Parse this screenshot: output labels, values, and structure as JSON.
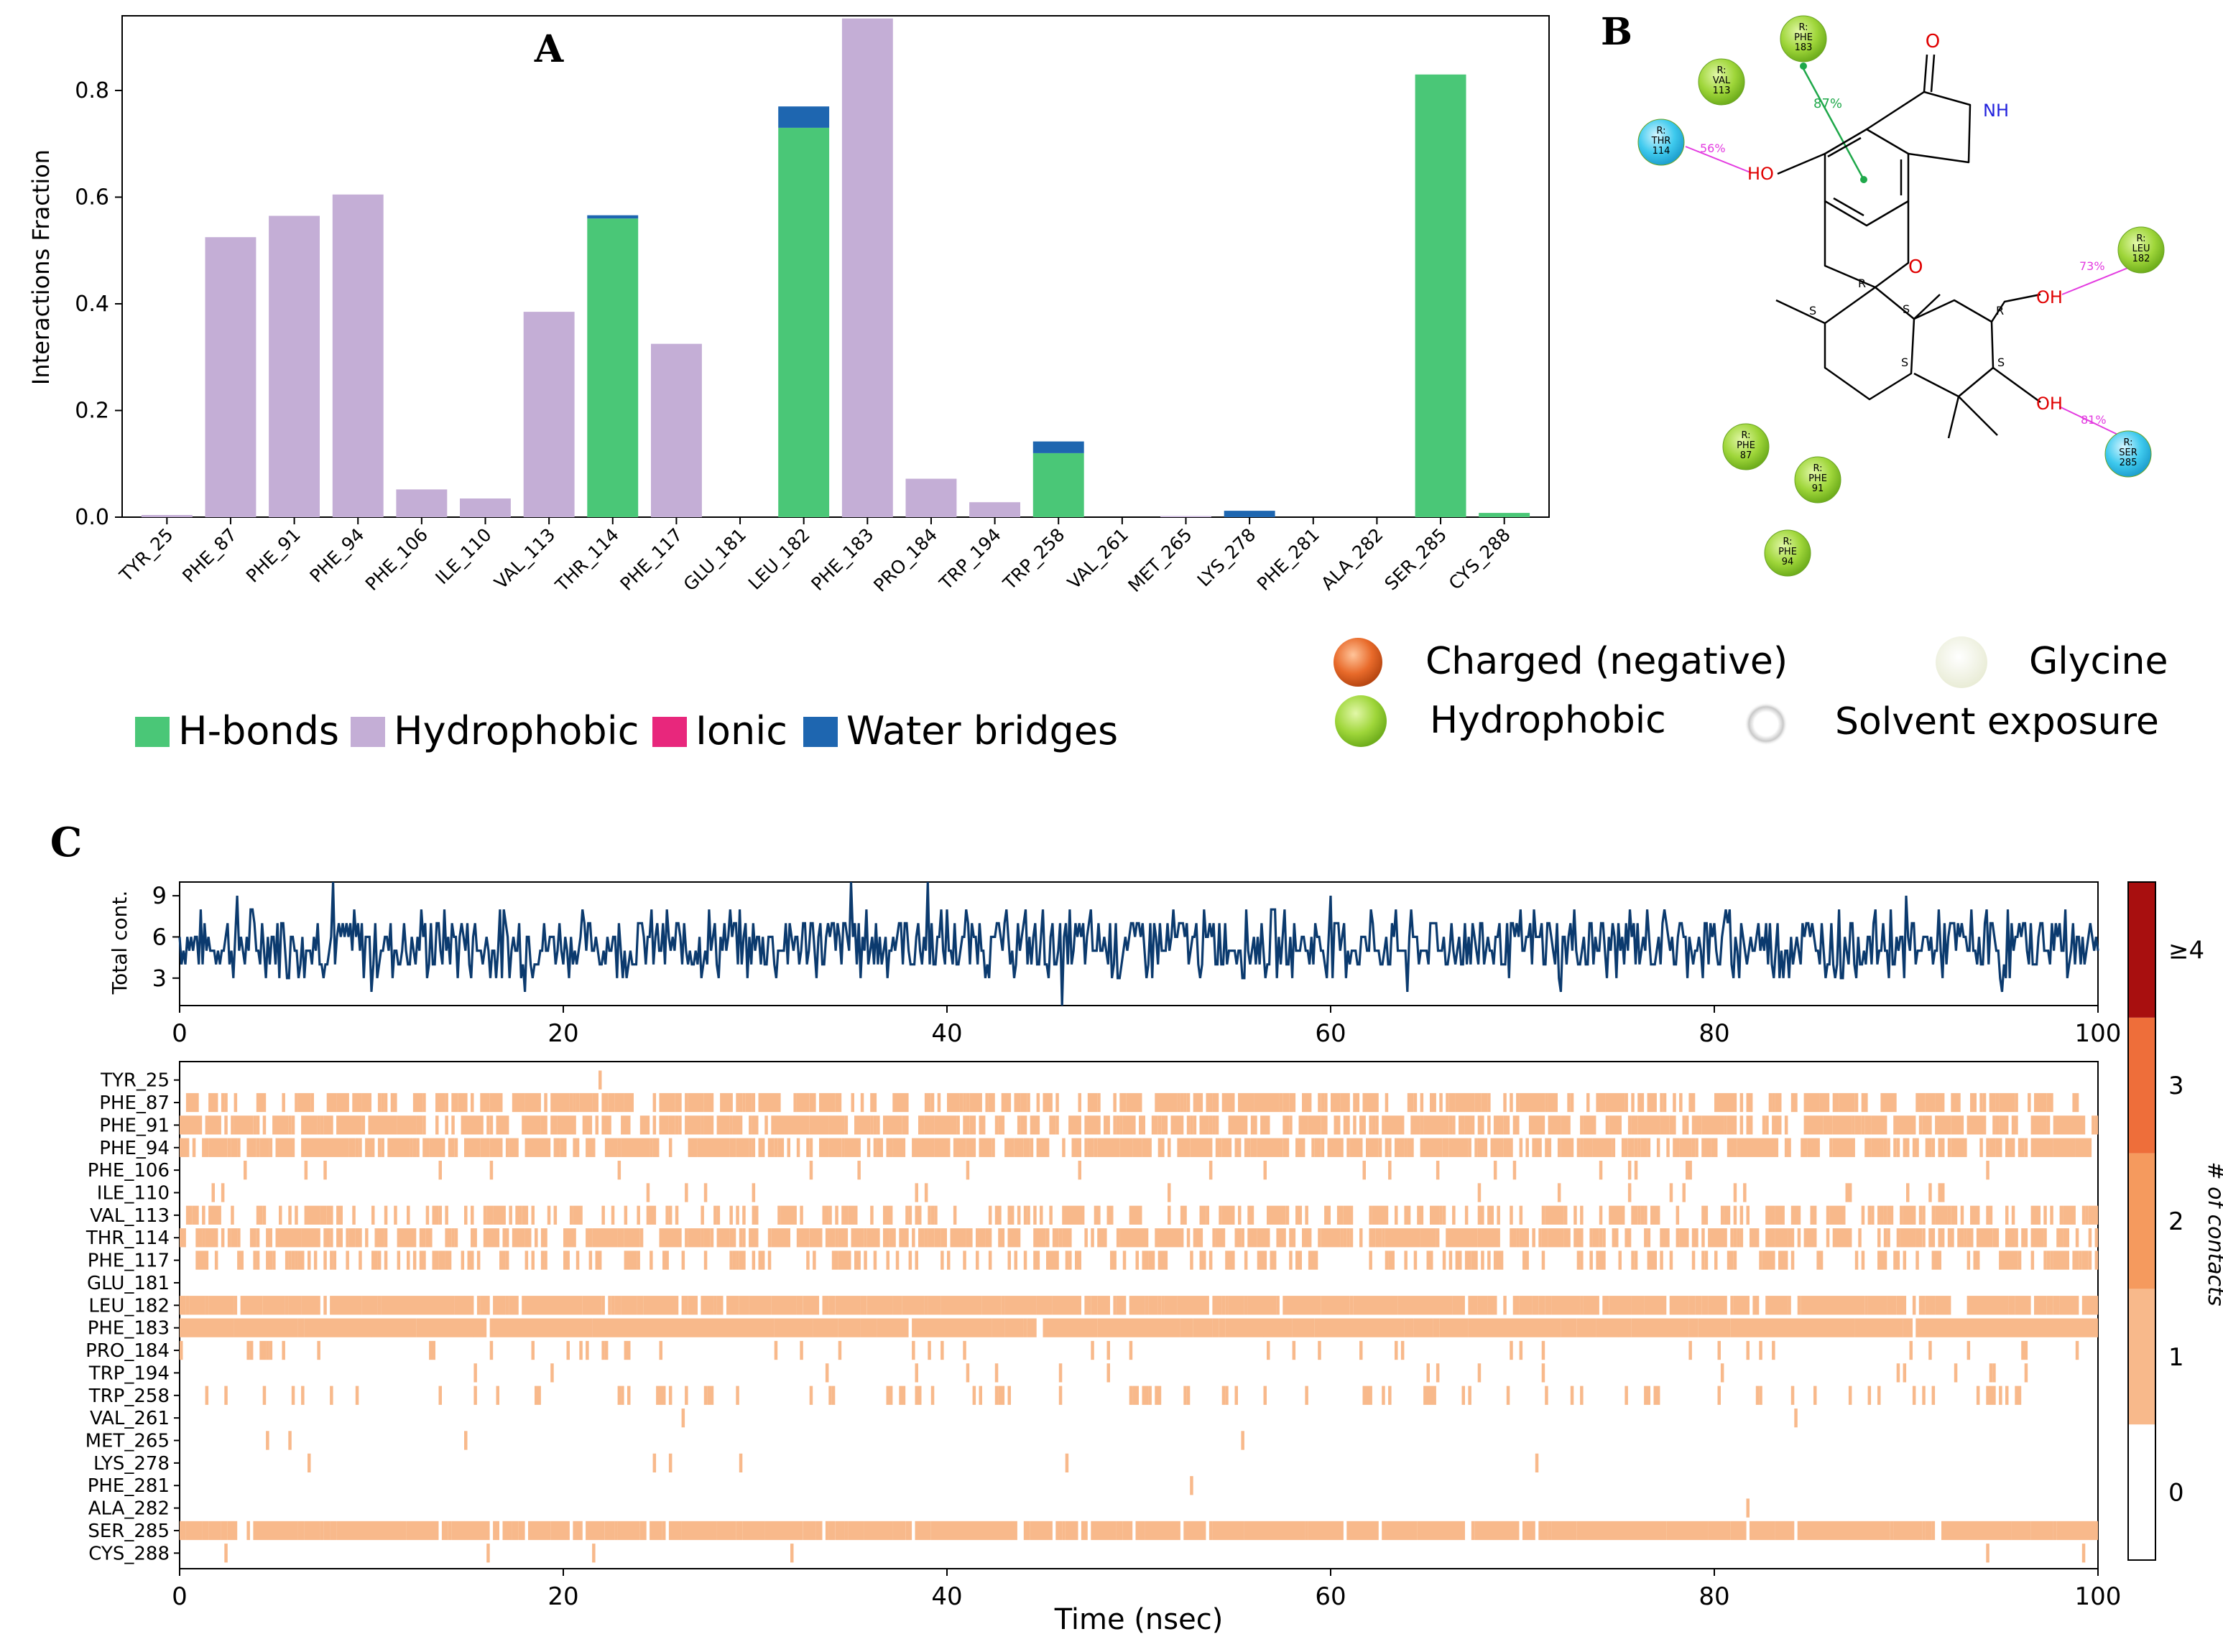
{
  "panels": {
    "a": {
      "letter": "A"
    },
    "b": {
      "letter": "B"
    },
    "c": {
      "letter": "C"
    }
  },
  "colors": {
    "hbond": "#4ac777",
    "hydrophobic": "#c4aed6",
    "ionic": "#e8277c",
    "water": "#1e66b0",
    "contact": "#f8b98b",
    "timeline": "#0b3a6e",
    "cb0": "#ffffff",
    "cb1": "#f8b98b",
    "cb2": "#f59a5e",
    "cb3": "#ee6e3a",
    "cb4": "#a80f0f",
    "ligand_green": "#8ccf2a",
    "ligand_cyan": "#35c4e8",
    "charged_neg": "#e0662a"
  },
  "chart_data": [
    {
      "type": "bar",
      "panel": "A",
      "title": "",
      "xlabel": "",
      "ylabel": "Interactions Fraction",
      "ylim": [
        0,
        0.94
      ],
      "yticks": [
        "0.0",
        "0.2",
        "0.4",
        "0.6",
        "0.8"
      ],
      "categories": [
        "TYR_25",
        "PHE_87",
        "PHE_91",
        "PHE_94",
        "PHE_106",
        "ILE_110",
        "VAL_113",
        "THR_114",
        "PHE_117",
        "GLU_181",
        "LEU_182",
        "PHE_183",
        "PRO_184",
        "TRP_194",
        "TRP_258",
        "VAL_261",
        "MET_265",
        "LYS_278",
        "PHE_281",
        "ALA_282",
        "SER_285",
        "CYS_288"
      ],
      "series": [
        {
          "name": "H-bonds",
          "values": [
            0,
            0,
            0,
            0,
            0,
            0,
            0,
            0.56,
            0,
            0,
            0.73,
            0,
            0,
            0,
            0.12,
            0,
            0,
            0,
            0,
            0,
            0.83,
            0.008
          ]
        },
        {
          "name": "Hydrophobic",
          "values": [
            0.004,
            0.525,
            0.565,
            0.605,
            0.052,
            0.035,
            0.385,
            0,
            0.325,
            0,
            0,
            0.935,
            0.072,
            0.028,
            0,
            0,
            0.002,
            0,
            0,
            0,
            0,
            0
          ]
        },
        {
          "name": "Ionic",
          "values": [
            0,
            0,
            0,
            0,
            0,
            0,
            0,
            0,
            0,
            0,
            0,
            0,
            0,
            0,
            0,
            0,
            0,
            0,
            0,
            0,
            0,
            0
          ]
        },
        {
          "name": "Water bridges",
          "values": [
            0,
            0,
            0,
            0,
            0,
            0,
            0,
            0.006,
            0,
            0,
            0.04,
            0,
            0,
            0,
            0.022,
            0,
            0,
            0.012,
            0,
            0,
            0,
            0
          ]
        }
      ],
      "legend": [
        "H-bonds",
        "Hydrophobic",
        "Ionic",
        "Water bridges"
      ],
      "legend_position": "bottom"
    },
    {
      "type": "line",
      "panel": "C-top",
      "ylabel": "Total cont.",
      "xlim": [
        0,
        100
      ],
      "ylim": [
        1,
        10
      ],
      "yticks": [
        "3",
        "6",
        "9"
      ],
      "xticks": [
        "0",
        "20",
        "40",
        "60",
        "80",
        "100"
      ],
      "mean_contacts": 5.5,
      "peaks": [
        {
          "x": 3,
          "y": 9
        },
        {
          "x": 8,
          "y": 10
        },
        {
          "x": 18,
          "y": 9
        },
        {
          "x": 35,
          "y": 10
        },
        {
          "x": 39,
          "y": 10
        },
        {
          "x": 60,
          "y": 9
        },
        {
          "x": 90,
          "y": 9
        }
      ],
      "troughs": [
        {
          "x": 10,
          "y": 2
        },
        {
          "x": 18,
          "y": 2
        },
        {
          "x": 46,
          "y": 1
        },
        {
          "x": 64,
          "y": 2
        },
        {
          "x": 72,
          "y": 2
        },
        {
          "x": 95,
          "y": 2
        }
      ]
    },
    {
      "type": "heatmap",
      "panel": "C-bottom",
      "xlabel": "Time (nsec)",
      "xlim": [
        0,
        100
      ],
      "xticks": [
        "0",
        "20",
        "40",
        "60",
        "80",
        "100"
      ],
      "rows": [
        "TYR_25",
        "PHE_87",
        "PHE_91",
        "PHE_94",
        "PHE_106",
        "ILE_110",
        "VAL_113",
        "THR_114",
        "PHE_117",
        "GLU_181",
        "LEU_182",
        "PHE_183",
        "PRO_184",
        "TRP_194",
        "TRP_258",
        "VAL_261",
        "MET_265",
        "LYS_278",
        "PHE_281",
        "ALA_282",
        "SER_285",
        "CYS_288"
      ],
      "occupancy": [
        0.003,
        0.52,
        0.56,
        0.6,
        0.05,
        0.03,
        0.38,
        0.56,
        0.32,
        0,
        0.77,
        0.94,
        0.07,
        0.03,
        0.14,
        0.004,
        0.01,
        0.01,
        0.002,
        0.002,
        0.83,
        0.01
      ],
      "colorbar_label": "# of contacts",
      "colorbar_ticks": [
        "0",
        "1",
        "2",
        "3",
        "≥4"
      ]
    }
  ],
  "ligand_diagram": {
    "residues": [
      {
        "id": "phe183",
        "label": "R:\nPHE\n183",
        "kind": "hydrophobic"
      },
      {
        "id": "val113",
        "label": "R:\nVAL\n113",
        "kind": "hydrophobic"
      },
      {
        "id": "thr114",
        "label": "R:\nTHR\n114",
        "kind": "polar"
      },
      {
        "id": "leu182",
        "label": "R:\nLEU\n182",
        "kind": "hydrophobic"
      },
      {
        "id": "phe87",
        "label": "R:\nPHE\n87",
        "kind": "hydrophobic"
      },
      {
        "id": "phe91",
        "label": "R:\nPHE\n91",
        "kind": "hydrophobic"
      },
      {
        "id": "phe94",
        "label": "R:\nPHE\n94",
        "kind": "hydrophobic"
      },
      {
        "id": "ser285",
        "label": "R:\nSER\n285",
        "kind": "polar"
      }
    ],
    "percentages": {
      "phe183": "87%",
      "thr114": "56%",
      "leu182": "73%",
      "ser285": "81%"
    },
    "atoms": {
      "o_carbonyl": "O",
      "nh": "NH",
      "ho": "HO",
      "o_ring": "O",
      "oh1": "OH",
      "oh2": "OH"
    },
    "stereo": {
      "s1": "S",
      "r1": "R",
      "s2": "S",
      "r2": "R",
      "s3": "S",
      "s4": "S"
    }
  },
  "legend_b": {
    "items": [
      "Charged (negative)",
      "Glycine",
      "Hydrophobic",
      "Solvent exposure"
    ]
  }
}
